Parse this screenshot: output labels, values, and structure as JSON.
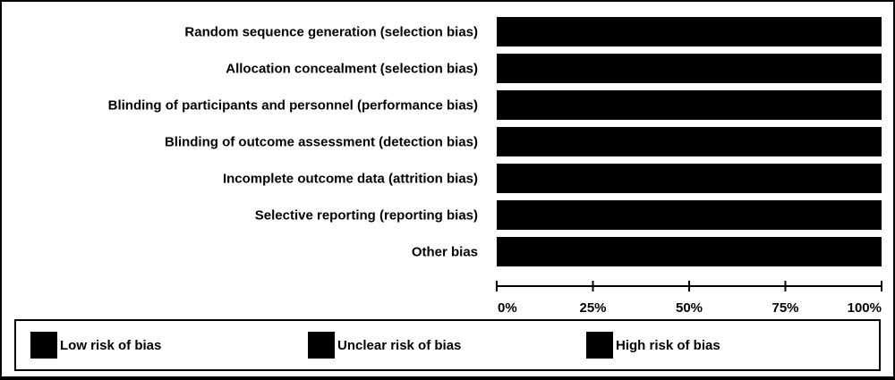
{
  "chart_data": {
    "type": "bar",
    "orientation": "horizontal",
    "stacked": true,
    "categories": [
      "Random sequence generation (selection bias)",
      "Allocation concealment (selection bias)",
      "Blinding of participants and personnel (performance bias)",
      "Blinding of outcome assessment (detection bias)",
      "Incomplete outcome data (attrition bias)",
      "Selective reporting (reporting bias)",
      "Other bias"
    ],
    "series": [
      {
        "name": "Low risk of bias",
        "values": [
          100,
          100,
          100,
          100,
          100,
          100,
          100
        ],
        "color": "#000000"
      },
      {
        "name": "Unclear risk of bias",
        "values": [
          0,
          0,
          0,
          0,
          0,
          0,
          0
        ],
        "color": "#000000"
      },
      {
        "name": "High risk of bias",
        "values": [
          0,
          0,
          0,
          0,
          0,
          0,
          0
        ],
        "color": "#000000"
      }
    ],
    "xlim": [
      0,
      100
    ],
    "x_ticks": [
      0,
      25,
      50,
      75,
      100
    ],
    "x_tick_labels": [
      "0%",
      "25%",
      "50%",
      "75%",
      "100%"
    ],
    "title": "",
    "xlabel": "",
    "ylabel": "",
    "grid": false,
    "legend_position": "bottom"
  }
}
